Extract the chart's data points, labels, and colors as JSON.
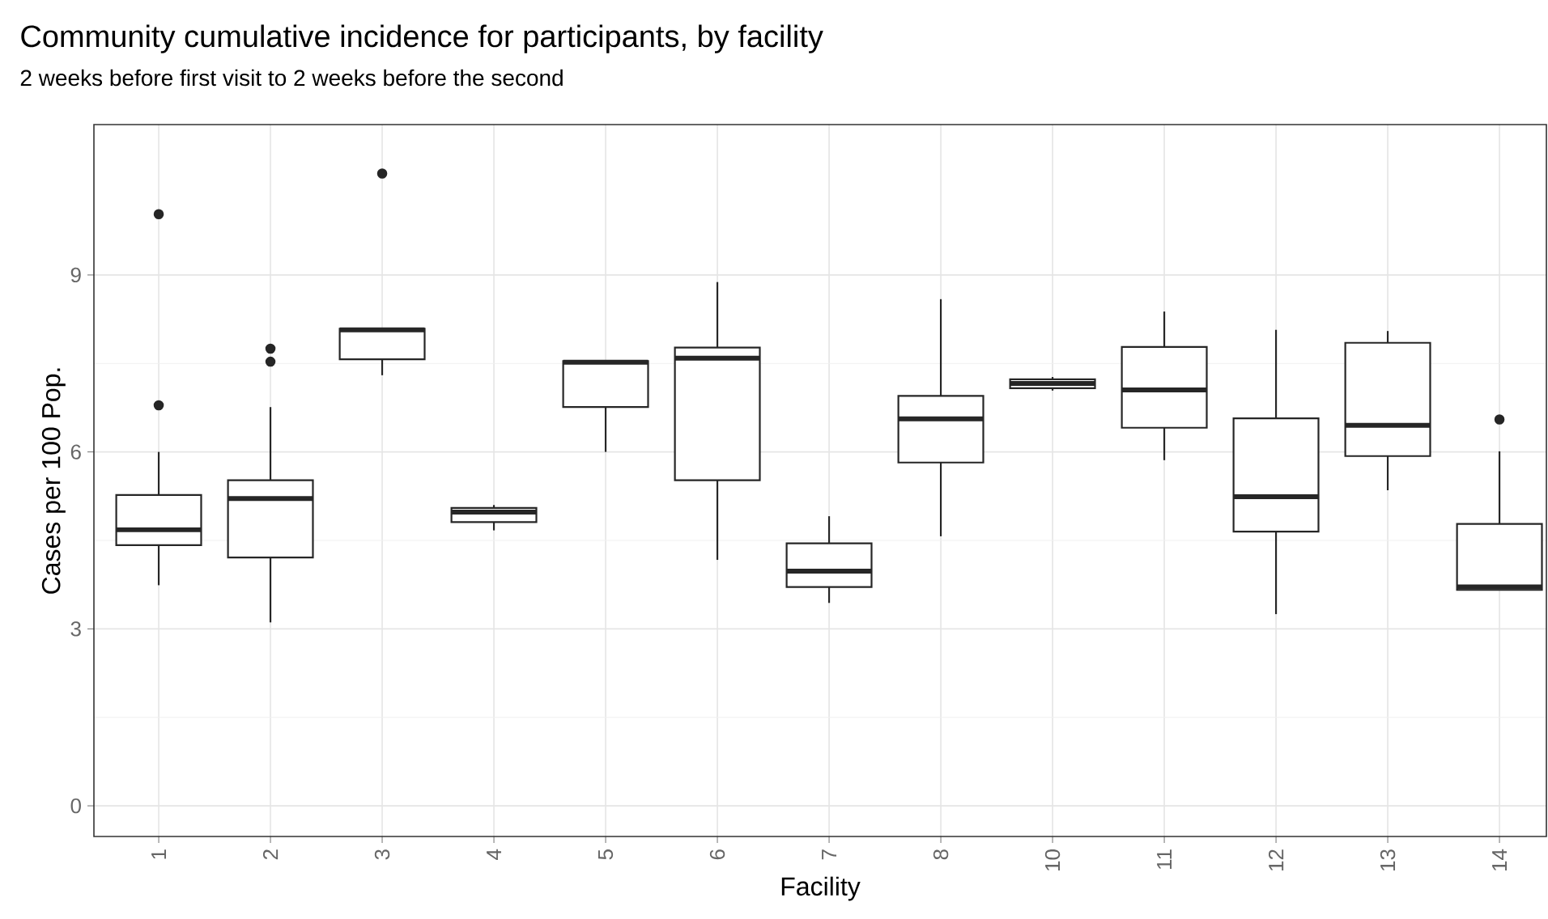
{
  "chart_data": {
    "type": "box",
    "title": "Community cumulative incidence for participants, by facility",
    "subtitle": "2 weeks before first visit to 2 weeks before the second",
    "xlabel": "Facility",
    "ylabel": "Cases per 100 Pop.",
    "categories": [
      "1",
      "2",
      "3",
      "4",
      "5",
      "6",
      "7",
      "8",
      "10",
      "11",
      "12",
      "13",
      "14"
    ],
    "color": "#262626",
    "boxes": [
      {
        "low": 3.74,
        "q1": 4.42,
        "median": 4.68,
        "q3": 5.27,
        "high": 6.0,
        "outliers": [
          10.03,
          6.79
        ]
      },
      {
        "low": 3.11,
        "q1": 4.21,
        "median": 5.21,
        "q3": 5.52,
        "high": 6.76,
        "outliers": [
          7.75,
          7.53
        ]
      },
      {
        "low": 7.3,
        "q1": 7.57,
        "median": 8.07,
        "q3": 8.09,
        "high": 8.09,
        "outliers": [
          10.72
        ]
      },
      {
        "low": 4.67,
        "q1": 4.81,
        "median": 4.98,
        "q3": 5.05,
        "high": 5.1
      },
      {
        "low": 6.0,
        "q1": 6.76,
        "median": 7.52,
        "q3": 7.54,
        "high": 7.54
      },
      {
        "low": 4.17,
        "q1": 5.52,
        "median": 7.59,
        "q3": 7.77,
        "high": 8.88
      },
      {
        "low": 3.44,
        "q1": 3.71,
        "median": 3.98,
        "q3": 4.45,
        "high": 4.91
      },
      {
        "low": 4.57,
        "q1": 5.82,
        "median": 6.56,
        "q3": 6.95,
        "high": 8.59
      },
      {
        "low": 7.04,
        "q1": 7.08,
        "median": 7.16,
        "q3": 7.23,
        "high": 7.27
      },
      {
        "low": 5.86,
        "q1": 6.41,
        "median": 7.05,
        "q3": 7.78,
        "high": 8.38
      },
      {
        "low": 3.25,
        "q1": 4.65,
        "median": 5.24,
        "q3": 6.57,
        "high": 8.07
      },
      {
        "low": 5.35,
        "q1": 5.93,
        "median": 6.45,
        "q3": 7.85,
        "high": 8.05
      },
      {
        "low": 3.66,
        "q1": 3.66,
        "median": 3.71,
        "q3": 4.78,
        "high": 6.01,
        "outliers": [
          6.55
        ]
      }
    ],
    "ylim": [
      -0.52,
      11.55
    ],
    "yticks": [
      0,
      3,
      6,
      9
    ],
    "grid": true
  }
}
